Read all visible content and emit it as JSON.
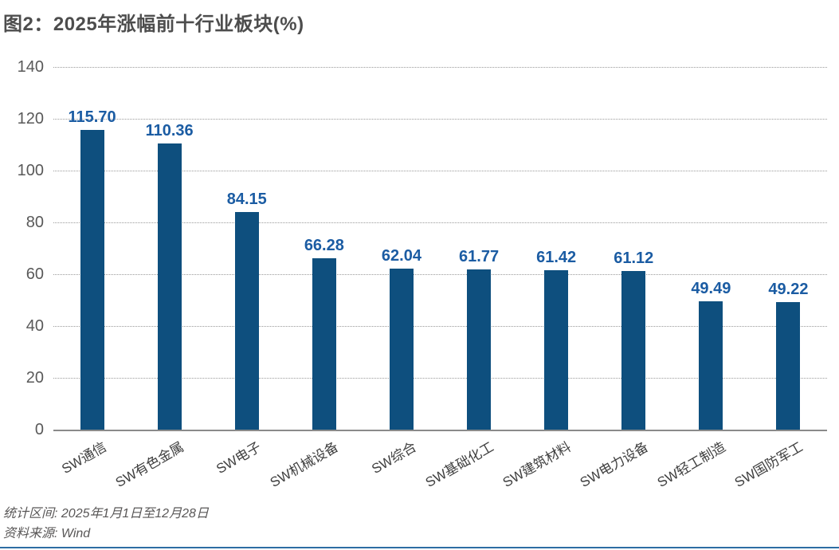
{
  "page": {
    "title": "图2：2025年涨幅前十行业板块(%)"
  },
  "footer": {
    "period": "统计区间: 2025年1月1日至12月28日",
    "source": "资料来源: Wind"
  },
  "colors": {
    "bar": "#0e4f7e",
    "value_label": "#1b5ca3",
    "title_text": "#4d4d4d",
    "axis_text": "#595959",
    "category_text": "#3f3f3f",
    "gridline": "#9a9a9a",
    "axis_line": "#8a8a8a",
    "footer_text": "#595757",
    "bottom_rule": "#2d6da3"
  },
  "chart_data": {
    "type": "bar",
    "title": "图2：2025年涨幅前十行业板块(%)",
    "categories": [
      "SW通信",
      "SW有色金属",
      "SW电子",
      "SW机械设备",
      "SW综合",
      "SW基础化工",
      "SW建筑材料",
      "SW电力设备",
      "SW轻工制造",
      "SW国防军工"
    ],
    "values": [
      115.7,
      110.36,
      84.15,
      66.28,
      62.04,
      61.77,
      61.42,
      61.12,
      49.49,
      49.22
    ],
    "value_labels": [
      "115.70",
      "110.36",
      "84.15",
      "66.28",
      "62.04",
      "61.77",
      "61.42",
      "61.12",
      "49.49",
      "49.22"
    ],
    "xlabel": "",
    "ylabel": "",
    "ylim": [
      0,
      140
    ],
    "ytick_step": 20,
    "yticks": [
      0,
      20,
      40,
      60,
      80,
      100,
      120,
      140
    ],
    "grid": "horizontal-dotted",
    "legend": "none",
    "value_label_format": "2dp"
  }
}
